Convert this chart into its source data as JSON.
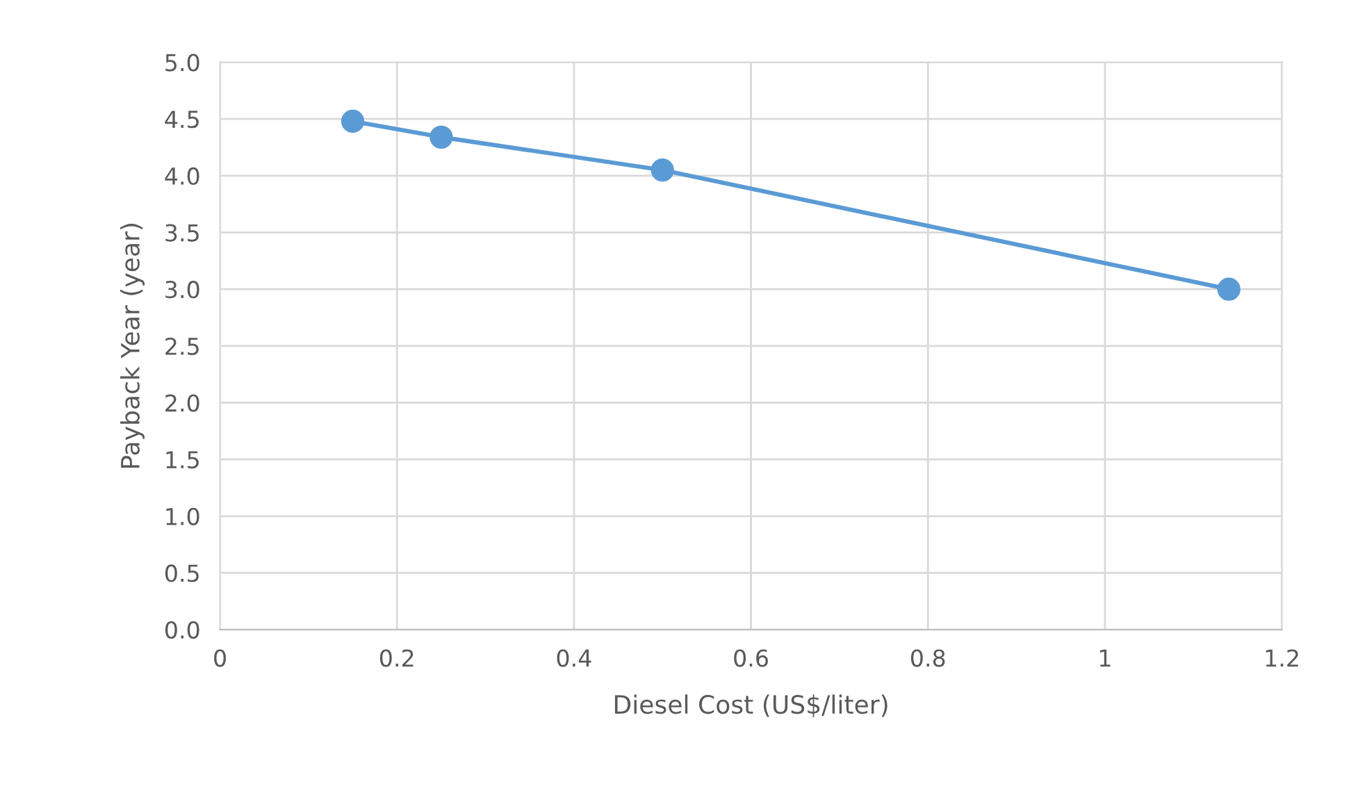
{
  "chart_data": {
    "type": "line",
    "xlabel": "Diesel Cost (US$/liter)",
    "ylabel": "Payback Year (year)",
    "x": [
      0.15,
      0.25,
      0.5,
      1.14
    ],
    "series": [
      {
        "color": "#5b9bd5",
        "values": [
          4.48,
          4.34,
          4.05,
          3.0
        ]
      }
    ],
    "xlim": [
      0,
      1.2
    ],
    "xticks": [
      0,
      0.2,
      0.4,
      0.6,
      0.8,
      1,
      1.2
    ],
    "ylim": [
      0,
      5.0
    ],
    "yticks": [
      {
        "value": 0,
        "label": "0.0"
      },
      {
        "value": 0.5,
        "label": "0.5"
      },
      {
        "value": 1.0,
        "label": "1.0"
      },
      {
        "value": 1.5,
        "label": "1.5"
      },
      {
        "value": 2.0,
        "label": "2.0"
      },
      {
        "value": 2.5,
        "label": "2.5"
      },
      {
        "value": 3.0,
        "label": "3.0"
      },
      {
        "value": 3.5,
        "label": "3.5"
      },
      {
        "value": 4.0,
        "label": "4.0"
      },
      {
        "value": 4.5,
        "label": "4.5"
      },
      {
        "value": 5.0,
        "label": "5.0"
      }
    ],
    "grid": true,
    "marker": "circle",
    "line_style": "solid",
    "legend": false
  }
}
